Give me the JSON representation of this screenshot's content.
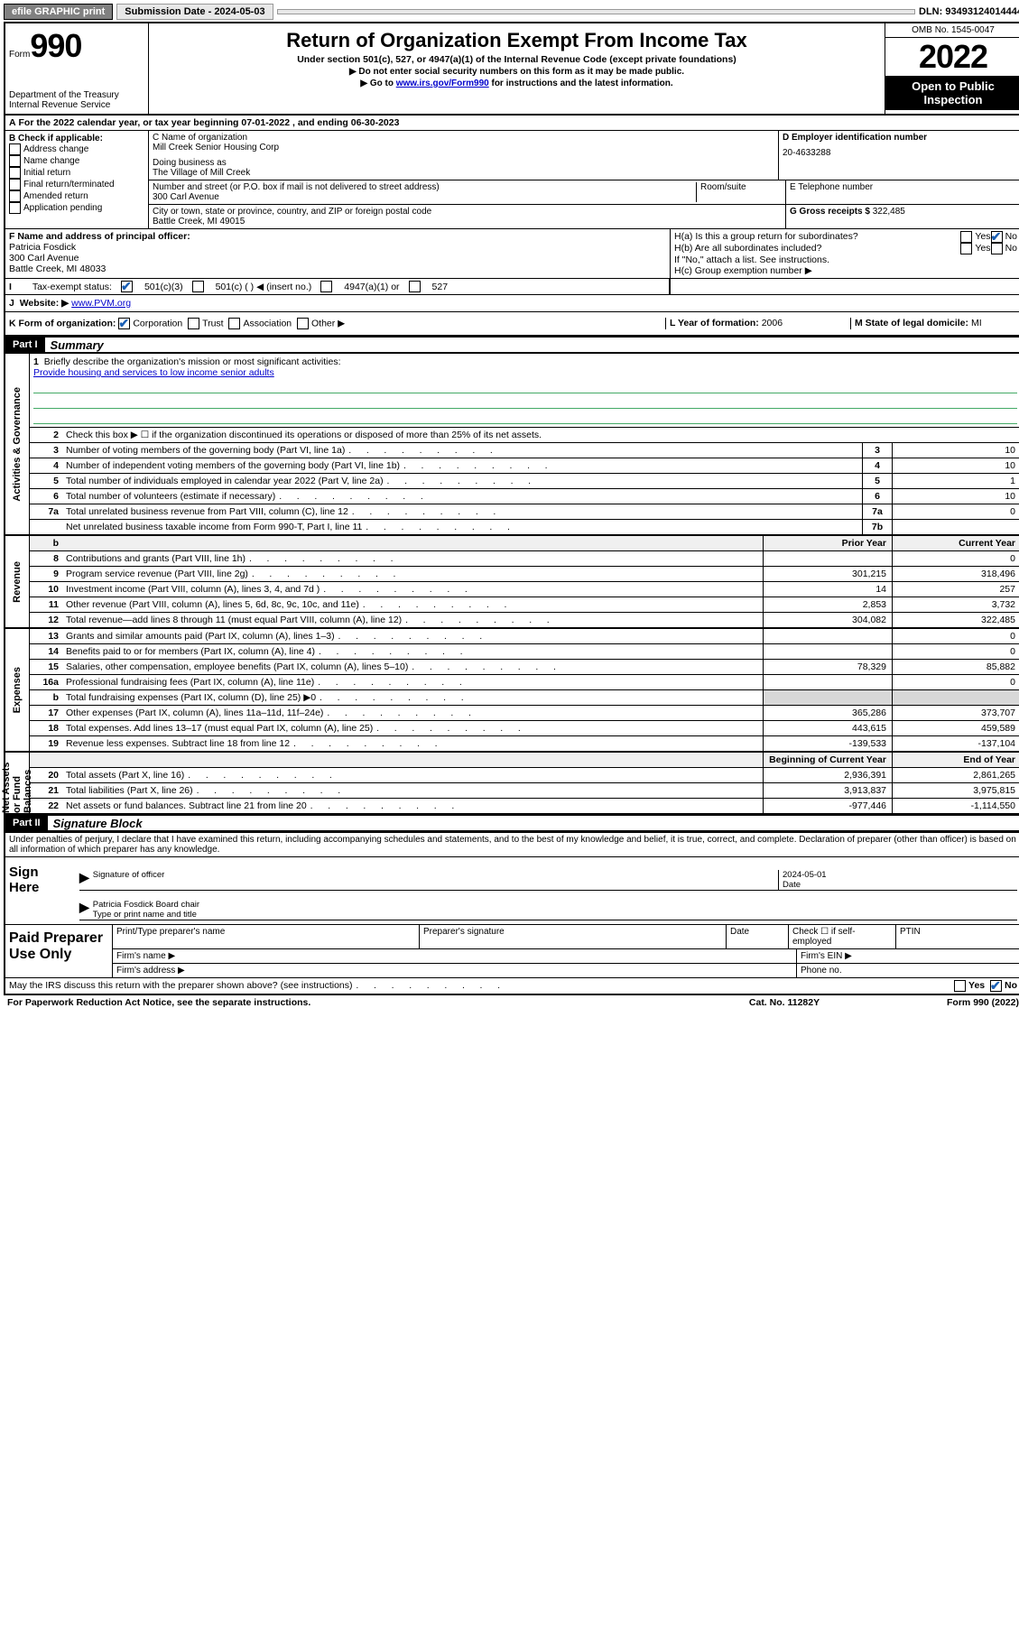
{
  "top": {
    "efile": "efile GRAPHIC print",
    "submission_label": "Submission Date - 2024-05-03",
    "dln": "DLN: 93493124014444"
  },
  "header": {
    "form_word": "Form",
    "form_num": "990",
    "dept": "Department of the Treasury",
    "irs": "Internal Revenue Service",
    "title": "Return of Organization Exempt From Income Tax",
    "sub": "Under section 501(c), 527, or 4947(a)(1) of the Internal Revenue Code (except private foundations)",
    "instr1": "▶ Do not enter social security numbers on this form as it may be made public.",
    "instr2_pre": "▶ Go to ",
    "instr2_link": "www.irs.gov/Form990",
    "instr2_post": " for instructions and the latest information.",
    "omb": "OMB No. 1545-0047",
    "year": "2022",
    "open": "Open to Public Inspection"
  },
  "a": "For the 2022 calendar year, or tax year beginning 07-01-2022   , and ending 06-30-2023",
  "b": {
    "hdr": "B Check if applicable:",
    "o1": "Address change",
    "o2": "Name change",
    "o3": "Initial return",
    "o4": "Final return/terminated",
    "o5": "Amended return",
    "o6": "Application pending"
  },
  "c": {
    "name_lbl": "C Name of organization",
    "name": "Mill Creek Senior Housing Corp",
    "dba_lbl": "Doing business as",
    "dba": "The Village of Mill Creek",
    "addr_lbl": "Number and street (or P.O. box if mail is not delivered to street address)",
    "room_lbl": "Room/suite",
    "addr": "300 Carl Avenue",
    "city_lbl": "City or town, state or province, country, and ZIP or foreign postal code",
    "city": "Battle Creek, MI  49015"
  },
  "d": {
    "lbl": "D Employer identification number",
    "val": "20-4633288"
  },
  "e": {
    "lbl": "E Telephone number",
    "val": ""
  },
  "g": {
    "lbl": "G Gross receipts $",
    "val": "322,485"
  },
  "f": {
    "lbl": "F  Name and address of principal officer:",
    "name": "Patricia Fosdick",
    "addr1": "300 Carl Avenue",
    "addr2": "Battle Creek, MI  48033"
  },
  "h": {
    "a": "H(a)  Is this a group return for subordinates?",
    "b": "H(b)  Are all subordinates included?",
    "b2": "If \"No,\" attach a list. See instructions.",
    "c": "H(c)  Group exemption number ▶",
    "yes": "Yes",
    "no": "No"
  },
  "i": {
    "lbl": "Tax-exempt status:",
    "o1": "501(c)(3)",
    "o2": "501(c) (  ) ◀ (insert no.)",
    "o3": "4947(a)(1) or",
    "o4": "527"
  },
  "j": {
    "lbl": "Website: ▶",
    "val": "www.PVM.org"
  },
  "k": {
    "lbl": "K Form of organization:",
    "o1": "Corporation",
    "o2": "Trust",
    "o3": "Association",
    "o4": "Other ▶"
  },
  "l": {
    "lbl": "L Year of formation:",
    "val": "2006"
  },
  "m": {
    "lbl": "M State of legal domicile:",
    "val": "MI"
  },
  "part1": {
    "hdr": "Part I",
    "title": "Summary"
  },
  "mission": {
    "q": "Briefly describe the organization's mission or most significant activities:",
    "a": "Provide housing and services to low income senior adults"
  },
  "ln2": "Check this box ▶ ☐  if the organization discontinued its operations or disposed of more than 25% of its net assets.",
  "lines_gov": [
    {
      "n": "3",
      "t": "Number of voting members of the governing body (Part VI, line 1a)",
      "box": "3",
      "v": "10"
    },
    {
      "n": "4",
      "t": "Number of independent voting members of the governing body (Part VI, line 1b)",
      "box": "4",
      "v": "10"
    },
    {
      "n": "5",
      "t": "Total number of individuals employed in calendar year 2022 (Part V, line 2a)",
      "box": "5",
      "v": "1"
    },
    {
      "n": "6",
      "t": "Total number of volunteers (estimate if necessary)",
      "box": "6",
      "v": "10"
    },
    {
      "n": "7a",
      "t": "Total unrelated business revenue from Part VIII, column (C), line 12",
      "box": "7a",
      "v": "0"
    },
    {
      "n": " ",
      "t": "Net unrelated business taxable income from Form 990-T, Part I, line 11",
      "box": "7b",
      "v": ""
    }
  ],
  "col_hdr_b": "b",
  "col_prior": "Prior Year",
  "col_current": "Current Year",
  "lines_rev": [
    {
      "n": "8",
      "t": "Contributions and grants (Part VIII, line 1h)",
      "p": "",
      "c": "0"
    },
    {
      "n": "9",
      "t": "Program service revenue (Part VIII, line 2g)",
      "p": "301,215",
      "c": "318,496"
    },
    {
      "n": "10",
      "t": "Investment income (Part VIII, column (A), lines 3, 4, and 7d )",
      "p": "14",
      "c": "257"
    },
    {
      "n": "11",
      "t": "Other revenue (Part VIII, column (A), lines 5, 6d, 8c, 9c, 10c, and 11e)",
      "p": "2,853",
      "c": "3,732"
    },
    {
      "n": "12",
      "t": "Total revenue—add lines 8 through 11 (must equal Part VIII, column (A), line 12)",
      "p": "304,082",
      "c": "322,485"
    }
  ],
  "lines_exp": [
    {
      "n": "13",
      "t": "Grants and similar amounts paid (Part IX, column (A), lines 1–3)",
      "p": "",
      "c": "0"
    },
    {
      "n": "14",
      "t": "Benefits paid to or for members (Part IX, column (A), line 4)",
      "p": "",
      "c": "0"
    },
    {
      "n": "15",
      "t": "Salaries, other compensation, employee benefits (Part IX, column (A), lines 5–10)",
      "p": "78,329",
      "c": "85,882"
    },
    {
      "n": "16a",
      "t": "Professional fundraising fees (Part IX, column (A), line 11e)",
      "p": "",
      "c": "0"
    },
    {
      "n": "b",
      "t": "Total fundraising expenses (Part IX, column (D), line 25) ▶0",
      "p": "SHADE",
      "c": "SHADE"
    },
    {
      "n": "17",
      "t": "Other expenses (Part IX, column (A), lines 11a–11d, 11f–24e)",
      "p": "365,286",
      "c": "373,707"
    },
    {
      "n": "18",
      "t": "Total expenses. Add lines 13–17 (must equal Part IX, column (A), line 25)",
      "p": "443,615",
      "c": "459,589"
    },
    {
      "n": "19",
      "t": "Revenue less expenses. Subtract line 18 from line 12",
      "p": "-139,533",
      "c": "-137,104"
    }
  ],
  "col_begin": "Beginning of Current Year",
  "col_end": "End of Year",
  "lines_net": [
    {
      "n": "20",
      "t": "Total assets (Part X, line 16)",
      "p": "2,936,391",
      "c": "2,861,265"
    },
    {
      "n": "21",
      "t": "Total liabilities (Part X, line 26)",
      "p": "3,913,837",
      "c": "3,975,815"
    },
    {
      "n": "22",
      "t": "Net assets or fund balances. Subtract line 21 from line 20",
      "p": "-977,446",
      "c": "-1,114,550"
    }
  ],
  "part2": {
    "hdr": "Part II",
    "title": "Signature Block"
  },
  "decl": "Under penalties of perjury, I declare that I have examined this return, including accompanying schedules and statements, and to the best of my knowledge and belief, it is true, correct, and complete. Declaration of preparer (other than officer) is based on all information of which preparer has any knowledge.",
  "sign": {
    "here": "Sign Here",
    "sig_lbl": "Signature of officer",
    "date_lbl": "Date",
    "date": "2024-05-01",
    "name": "Patricia Fosdick  Board chair",
    "name_lbl": "Type or print name and title"
  },
  "paid": {
    "lbl": "Paid Preparer Use Only",
    "c1": "Print/Type preparer's name",
    "c2": "Preparer's signature",
    "c3": "Date",
    "c4a": "Check ☐ if self-employed",
    "c5": "PTIN",
    "firm_name": "Firm's name  ▶",
    "firm_ein": "Firm's EIN ▶",
    "firm_addr": "Firm's address ▶",
    "phone": "Phone no."
  },
  "discuss": "May the IRS discuss this return with the preparer shown above? (see instructions)",
  "footer": {
    "pra": "For Paperwork Reduction Act Notice, see the separate instructions.",
    "cat": "Cat. No. 11282Y",
    "form": "Form 990 (2022)"
  },
  "tabs": {
    "gov": "Activities & Governance",
    "rev": "Revenue",
    "exp": "Expenses",
    "net": "Net Assets or Fund Balances"
  }
}
